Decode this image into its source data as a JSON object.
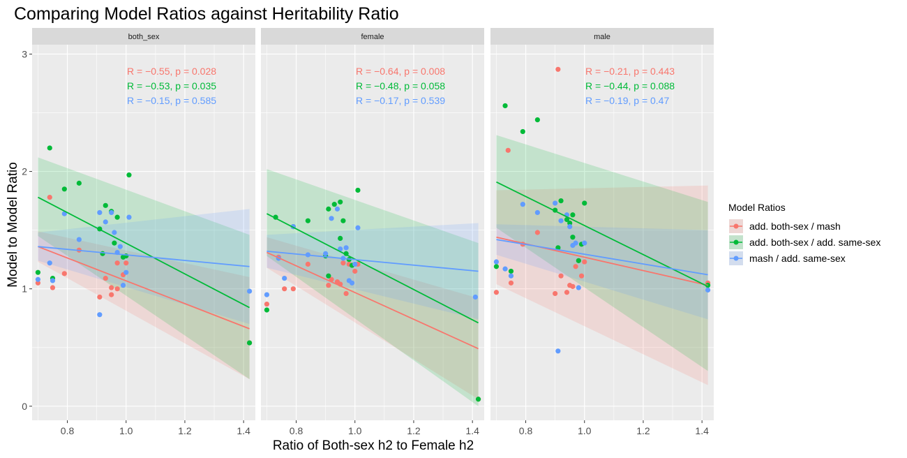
{
  "chart_data": {
    "type": "scatter",
    "title": "Comparing Model Ratios against Heritability Ratio",
    "xlabel": "Ratio of Both-sex h2 to Female h2",
    "ylabel": "Model to Model Ratio",
    "xlim": [
      0.68,
      1.44
    ],
    "ylim": [
      -0.12,
      3.08
    ],
    "x_ticks": [
      0.8,
      1.0,
      1.2,
      1.4
    ],
    "y_ticks": [
      0,
      1,
      2,
      3
    ],
    "x_tick_labels": [
      "0.8",
      "1.0",
      "1.2",
      "1.4"
    ],
    "y_tick_labels": [
      "0",
      "1",
      "2",
      "3"
    ],
    "grid": true,
    "legend": {
      "title": "Model Ratios",
      "position": "right",
      "entries": [
        {
          "label": "add. both-sex / mash",
          "color": "#F8766D"
        },
        {
          "label": "add. both-sex / add. same-sex",
          "color": "#00BA38"
        },
        {
          "label": "mash / add. same-sex",
          "color": "#619CFF"
        }
      ]
    },
    "panels": [
      {
        "strip": "both_sex",
        "series": [
          {
            "name": "add. both-sex / mash",
            "color": "#F8766D",
            "stat_label": "R = −0.55, p = 0.028",
            "fit": {
              "x": [
                0.7,
                1.42
              ],
              "y": [
                1.36,
                0.66
              ],
              "ci_lo": [
                1.23,
                0.23
              ],
              "ci_hi": [
                1.49,
                1.1
              ]
            },
            "points": [
              [
                0.7,
                1.05
              ],
              [
                0.74,
                1.78
              ],
              [
                0.75,
                1.01
              ],
              [
                0.79,
                1.13
              ],
              [
                0.84,
                1.33
              ],
              [
                0.91,
                0.93
              ],
              [
                0.93,
                1.09
              ],
              [
                0.95,
                1.01
              ],
              [
                0.95,
                0.95
              ],
              [
                0.97,
                1.0
              ],
              [
                0.97,
                1.22
              ],
              [
                0.99,
                1.12
              ],
              [
                1.0,
                1.22
              ],
              [
                1.42,
                0.54
              ]
            ]
          },
          {
            "name": "add. both-sex / add. same-sex",
            "color": "#00BA38",
            "stat_label": "R = −0.53, p = 0.035",
            "fit": {
              "x": [
                0.7,
                1.42
              ],
              "y": [
                1.78,
                0.84
              ],
              "ci_lo": [
                1.45,
                0.23
              ],
              "ci_hi": [
                2.12,
                1.46
              ]
            },
            "points": [
              [
                0.7,
                1.14
              ],
              [
                0.74,
                2.2
              ],
              [
                0.79,
                1.85
              ],
              [
                0.84,
                1.9
              ],
              [
                0.91,
                1.51
              ],
              [
                0.92,
                1.3
              ],
              [
                0.93,
                1.71
              ],
              [
                0.95,
                1.66
              ],
              [
                0.96,
                1.39
              ],
              [
                0.97,
                1.61
              ],
              [
                0.99,
                1.27
              ],
              [
                1.0,
                1.28
              ],
              [
                1.01,
                1.97
              ],
              [
                0.75,
                1.09
              ],
              [
                1.42,
                0.54
              ]
            ]
          },
          {
            "name": "mash / add. same-sex",
            "color": "#619CFF",
            "stat_label": "R = −0.15, p = 0.585",
            "fit": {
              "x": [
                0.7,
                1.42
              ],
              "y": [
                1.36,
                1.19
              ],
              "ci_lo": [
                1.24,
                0.7
              ],
              "ci_hi": [
                1.48,
                1.68
              ]
            },
            "points": [
              [
                0.7,
                1.08
              ],
              [
                0.74,
                1.22
              ],
              [
                0.75,
                1.07
              ],
              [
                0.79,
                1.64
              ],
              [
                0.84,
                1.42
              ],
              [
                0.91,
                1.65
              ],
              [
                0.91,
                0.78
              ],
              [
                0.93,
                1.57
              ],
              [
                0.95,
                1.65
              ],
              [
                0.96,
                1.48
              ],
              [
                0.97,
                1.31
              ],
              [
                0.98,
                1.36
              ],
              [
                0.99,
                1.03
              ],
              [
                1.0,
                1.14
              ],
              [
                1.01,
                1.61
              ],
              [
                1.42,
                0.98
              ]
            ]
          }
        ]
      },
      {
        "strip": "female",
        "series": [
          {
            "name": "add. both-sex / mash",
            "color": "#F8766D",
            "stat_label": "R = −0.64, p = 0.008",
            "fit": {
              "x": [
                0.7,
                1.42
              ],
              "y": [
                1.31,
                0.49
              ],
              "ci_lo": [
                1.18,
                0.06
              ],
              "ci_hi": [
                1.44,
                0.92
              ]
            },
            "points": [
              [
                0.7,
                0.87
              ],
              [
                0.74,
                1.27
              ],
              [
                0.76,
                1.0
              ],
              [
                0.79,
                1.0
              ],
              [
                0.84,
                1.21
              ],
              [
                0.91,
                1.03
              ],
              [
                0.92,
                1.08
              ],
              [
                0.94,
                1.06
              ],
              [
                0.95,
                1.04
              ],
              [
                0.96,
                1.22
              ],
              [
                0.97,
                0.96
              ],
              [
                0.98,
                1.21
              ],
              [
                1.0,
                1.15
              ],
              [
                1.01,
                1.21
              ],
              [
                1.42,
                0.06
              ]
            ]
          },
          {
            "name": "add. both-sex / add. same-sex",
            "color": "#00BA38",
            "stat_label": "R = −0.48, p = 0.058",
            "fit": {
              "x": [
                0.7,
                1.42
              ],
              "y": [
                1.64,
                0.71
              ],
              "ci_lo": [
                1.28,
                0.0
              ],
              "ci_hi": [
                2.02,
                1.39
              ]
            },
            "points": [
              [
                0.7,
                0.82
              ],
              [
                0.73,
                1.61
              ],
              [
                0.79,
                1.53
              ],
              [
                0.84,
                1.58
              ],
              [
                0.9,
                1.28
              ],
              [
                0.91,
                1.68
              ],
              [
                0.93,
                1.72
              ],
              [
                0.95,
                1.74
              ],
              [
                0.95,
                1.43
              ],
              [
                0.96,
                1.58
              ],
              [
                0.97,
                1.3
              ],
              [
                0.98,
                1.25
              ],
              [
                0.99,
                1.2
              ],
              [
                1.01,
                1.84
              ],
              [
                0.91,
                1.11
              ],
              [
                1.42,
                0.06
              ]
            ]
          },
          {
            "name": "mash / add. same-sex",
            "color": "#619CFF",
            "stat_label": "R = −0.17, p = 0.539",
            "fit": {
              "x": [
                0.7,
                1.42
              ],
              "y": [
                1.32,
                1.15
              ],
              "ci_lo": [
                1.18,
                0.74
              ],
              "ci_hi": [
                1.46,
                1.56
              ]
            },
            "points": [
              [
                0.7,
                0.95
              ],
              [
                0.74,
                1.26
              ],
              [
                0.76,
                1.09
              ],
              [
                0.79,
                1.53
              ],
              [
                0.84,
                1.29
              ],
              [
                0.9,
                1.3
              ],
              [
                0.92,
                1.6
              ],
              [
                0.94,
                1.68
              ],
              [
                0.95,
                1.34
              ],
              [
                0.96,
                1.26
              ],
              [
                0.97,
                1.35
              ],
              [
                0.98,
                1.07
              ],
              [
                0.99,
                1.05
              ],
              [
                1.0,
                1.21
              ],
              [
                1.01,
                1.52
              ],
              [
                1.41,
                0.93
              ]
            ]
          }
        ]
      },
      {
        "strip": "male",
        "series": [
          {
            "name": "add. both-sex / mash",
            "color": "#F8766D",
            "stat_label": "R = −0.21, p = 0.443",
            "fit": {
              "x": [
                0.7,
                1.42
              ],
              "y": [
                1.44,
                1.03
              ],
              "ci_lo": [
                1.04,
                0.18
              ],
              "ci_hi": [
                1.84,
                1.88
              ]
            },
            "points": [
              [
                0.7,
                0.97
              ],
              [
                0.74,
                2.18
              ],
              [
                0.75,
                1.05
              ],
              [
                0.79,
                1.38
              ],
              [
                0.84,
                1.48
              ],
              [
                0.9,
                0.96
              ],
              [
                0.91,
                2.87
              ],
              [
                0.92,
                1.11
              ],
              [
                0.94,
                0.97
              ],
              [
                0.95,
                1.03
              ],
              [
                0.96,
                1.02
              ],
              [
                0.97,
                1.19
              ],
              [
                0.98,
                1.24
              ],
              [
                0.99,
                1.11
              ],
              [
                1.0,
                1.23
              ],
              [
                1.42,
                1.05
              ]
            ]
          },
          {
            "name": "add. both-sex / add. same-sex",
            "color": "#00BA38",
            "stat_label": "R = −0.44, p = 0.088",
            "fit": {
              "x": [
                0.7,
                1.42
              ],
              "y": [
                1.91,
                1.02
              ],
              "ci_lo": [
                1.52,
                0.3
              ],
              "ci_hi": [
                2.31,
                1.74
              ]
            },
            "points": [
              [
                0.7,
                1.19
              ],
              [
                0.73,
                2.56
              ],
              [
                0.79,
                2.34
              ],
              [
                0.84,
                2.44
              ],
              [
                0.9,
                1.67
              ],
              [
                0.91,
                1.35
              ],
              [
                0.92,
                1.75
              ],
              [
                0.94,
                1.59
              ],
              [
                0.95,
                1.56
              ],
              [
                0.96,
                1.44
              ],
              [
                0.96,
                1.63
              ],
              [
                0.98,
                1.24
              ],
              [
                0.99,
                1.38
              ],
              [
                1.0,
                1.73
              ],
              [
                0.75,
                1.15
              ],
              [
                1.42,
                1.03
              ]
            ]
          },
          {
            "name": "mash / add. same-sex",
            "color": "#619CFF",
            "stat_label": "R = −0.19, p = 0.47",
            "fit": {
              "x": [
                0.7,
                1.42
              ],
              "y": [
                1.42,
                1.12
              ],
              "ci_lo": [
                1.29,
                0.74
              ],
              "ci_hi": [
                1.55,
                1.5
              ]
            },
            "points": [
              [
                0.7,
                1.23
              ],
              [
                0.73,
                1.17
              ],
              [
                0.75,
                1.11
              ],
              [
                0.79,
                1.72
              ],
              [
                0.84,
                1.65
              ],
              [
                0.9,
                1.73
              ],
              [
                0.91,
                0.47
              ],
              [
                0.92,
                1.58
              ],
              [
                0.94,
                1.63
              ],
              [
                0.95,
                1.53
              ],
              [
                0.96,
                1.37
              ],
              [
                0.97,
                1.39
              ],
              [
                0.98,
                1.01
              ],
              [
                1.0,
                1.39
              ],
              [
                1.42,
                0.99
              ]
            ]
          }
        ]
      }
    ]
  }
}
